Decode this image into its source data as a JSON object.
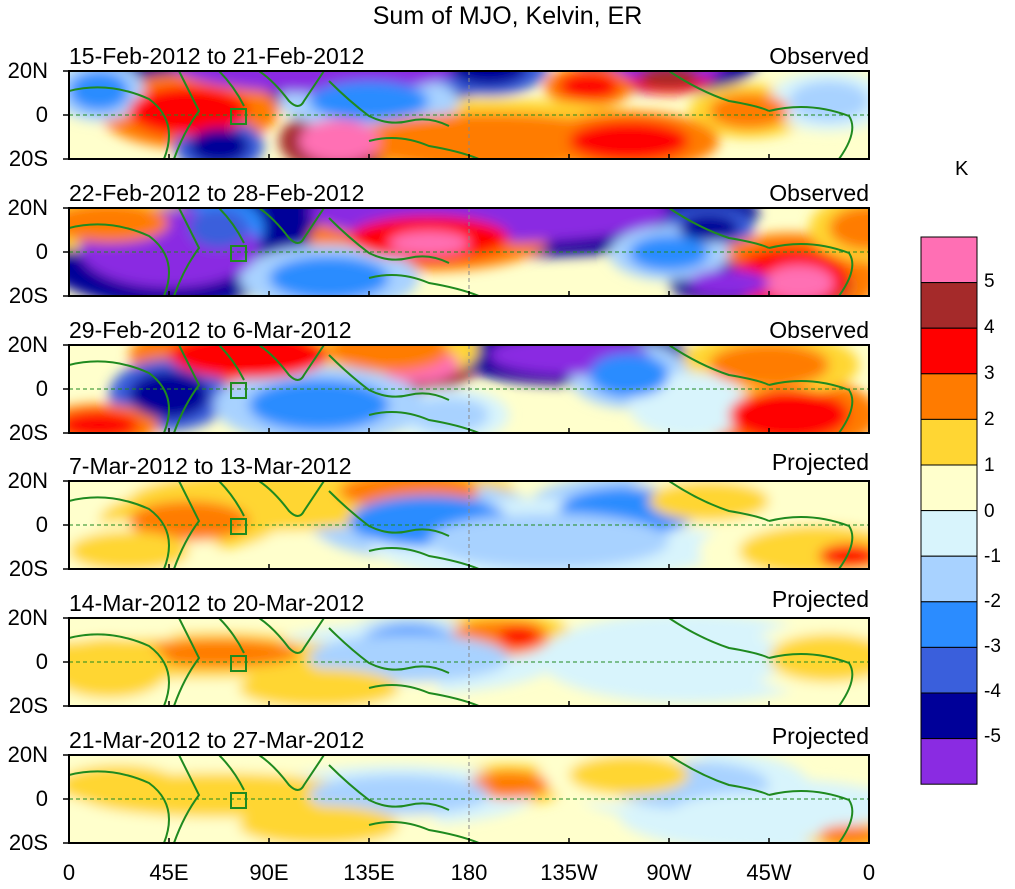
{
  "title": "Sum of MJO, Kelvin, ER",
  "unit": "K",
  "panels": [
    {
      "date_range": "15-Feb-2012 to 21-Feb-2012",
      "status": "Observed"
    },
    {
      "date_range": "22-Feb-2012 to 28-Feb-2012",
      "status": "Observed"
    },
    {
      "date_range": "29-Feb-2012 to 6-Mar-2012",
      "status": "Observed"
    },
    {
      "date_range": "7-Mar-2012 to 13-Mar-2012",
      "status": "Projected"
    },
    {
      "date_range": "14-Mar-2012 to 20-Mar-2012",
      "status": "Projected"
    },
    {
      "date_range": "21-Mar-2012 to 27-Mar-2012",
      "status": "Projected"
    }
  ],
  "lat_ticks": [
    "20N",
    "0",
    "20S"
  ],
  "lon_ticks": [
    "0",
    "45E",
    "90E",
    "135E",
    "180",
    "135W",
    "90W",
    "45W",
    "0"
  ],
  "colorbar": {
    "labels": [
      "5",
      "4",
      "3",
      "2",
      "1",
      "0",
      "-1",
      "-2",
      "-3",
      "-4",
      "-5"
    ],
    "colors": [
      "#ff6fb4",
      "#a52a2a",
      "#ff0000",
      "#ff7b00",
      "#ffd633",
      "#ffffcc",
      "#d8f4fc",
      "#a8d2ff",
      "#2b8cff",
      "#3a5fdc",
      "#000099",
      "#8a2be2"
    ]
  },
  "colors": {
    "coast": "#1f8a1f",
    "frame": "#000000"
  }
}
